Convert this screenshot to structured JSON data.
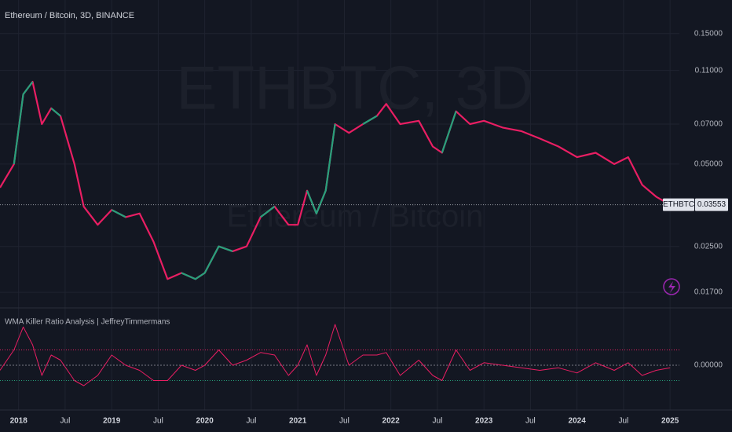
{
  "chart_data": [
    {
      "type": "line",
      "title": "Ethereum / Bitcoin, 3D, BINANCE",
      "watermark": "ETHBTC, 3D",
      "watermark_subtitle": "Ethereum / Bitcoin",
      "symbol": "ETHBTC",
      "last_price": 0.03553,
      "log_scale": true,
      "grid": true,
      "xlim": [
        2017.8,
        2025.1
      ],
      "ylim": [
        0.0151,
        0.199
      ],
      "yticks": [
        {
          "value": 0.15,
          "label": "0.15000"
        },
        {
          "value": 0.11,
          "label": "0.11000"
        },
        {
          "value": 0.07,
          "label": "0.07000"
        },
        {
          "value": 0.05,
          "label": "0.05000"
        },
        {
          "value": 0.025,
          "label": "0.02500"
        },
        {
          "value": 0.017,
          "label": "0.01700"
        }
      ],
      "xticks": [
        {
          "value": 2018,
          "label": "2018"
        },
        {
          "value": 2018.5,
          "label": "Jul"
        },
        {
          "value": 2019,
          "label": "2019"
        },
        {
          "value": 2019.5,
          "label": "Jul"
        },
        {
          "value": 2020,
          "label": "2020"
        },
        {
          "value": 2020.5,
          "label": "Jul"
        },
        {
          "value": 2021,
          "label": "2021"
        },
        {
          "value": 2021.5,
          "label": "Jul"
        },
        {
          "value": 2022,
          "label": "2022"
        },
        {
          "value": 2022.5,
          "label": "Jul"
        },
        {
          "value": 2023,
          "label": "2023"
        },
        {
          "value": 2023.5,
          "label": "Jul"
        },
        {
          "value": 2024,
          "label": "2024"
        },
        {
          "value": 2024.5,
          "label": "Jul"
        },
        {
          "value": 2025,
          "label": "2025"
        }
      ],
      "x": [
        2017.8,
        2017.95,
        2018.05,
        2018.15,
        2018.25,
        2018.35,
        2018.45,
        2018.6,
        2018.7,
        2018.85,
        2019.0,
        2019.15,
        2019.3,
        2019.45,
        2019.6,
        2019.75,
        2019.9,
        2020.0,
        2020.15,
        2020.3,
        2020.45,
        2020.6,
        2020.75,
        2020.9,
        2021.0,
        2021.1,
        2021.2,
        2021.3,
        2021.4,
        2021.55,
        2021.7,
        2021.85,
        2021.95,
        2022.1,
        2022.3,
        2022.45,
        2022.55,
        2022.7,
        2022.85,
        2023.0,
        2023.2,
        2023.4,
        2023.6,
        2023.8,
        2024.0,
        2024.2,
        2024.4,
        2024.55,
        2024.7,
        2024.85,
        2025.0
      ],
      "series": [
        {
          "name": "ETHBTC",
          "color": "#e91e63",
          "values": [
            0.041,
            0.05,
            0.09,
            0.1,
            0.07,
            0.08,
            0.075,
            0.05,
            0.035,
            0.03,
            0.034,
            0.032,
            0.033,
            0.026,
            0.019,
            0.02,
            0.019,
            0.02,
            0.025,
            0.024,
            0.025,
            0.032,
            0.035,
            0.03,
            0.03,
            0.04,
            0.033,
            0.04,
            0.07,
            0.065,
            0.07,
            0.075,
            0.083,
            0.07,
            0.072,
            0.058,
            0.055,
            0.078,
            0.07,
            0.072,
            0.068,
            0.066,
            0.062,
            0.058,
            0.053,
            0.055,
            0.05,
            0.053,
            0.042,
            0.038,
            0.0355
          ]
        },
        {
          "color": "#26a17b",
          "values": [
            null,
            0.05,
            0.09,
            0.1,
            null,
            0.08,
            0.075,
            null,
            null,
            null,
            0.034,
            0.032,
            null,
            null,
            null,
            0.02,
            0.019,
            0.02,
            0.025,
            0.024,
            null,
            0.032,
            0.035,
            null,
            null,
            0.04,
            0.033,
            0.04,
            0.07,
            null,
            0.07,
            0.075,
            null,
            null,
            null,
            null,
            0.055,
            0.078,
            null,
            null,
            null,
            null,
            null,
            null,
            null,
            0.055,
            null,
            null,
            null,
            null,
            null
          ]
        }
      ]
    },
    {
      "type": "line",
      "title": "WMA Killer Ratio Analysis | JeffreyTimmermans",
      "ylim": [
        -0.1,
        0.1
      ],
      "yticks": [
        {
          "value": 0,
          "label": "0.00000"
        }
      ],
      "levels": [
        0.03,
        -0.03
      ],
      "xlim": [
        2017.8,
        2025.1
      ],
      "x": [
        2017.8,
        2017.95,
        2018.05,
        2018.15,
        2018.25,
        2018.35,
        2018.45,
        2018.6,
        2018.7,
        2018.85,
        2019.0,
        2019.15,
        2019.3,
        2019.45,
        2019.6,
        2019.75,
        2019.9,
        2020.0,
        2020.15,
        2020.3,
        2020.45,
        2020.6,
        2020.75,
        2020.9,
        2021.0,
        2021.1,
        2021.2,
        2021.3,
        2021.4,
        2021.55,
        2021.7,
        2021.85,
        2021.95,
        2022.1,
        2022.3,
        2022.45,
        2022.55,
        2022.7,
        2022.85,
        2023.0,
        2023.2,
        2023.4,
        2023.6,
        2023.8,
        2024.0,
        2024.2,
        2024.4,
        2024.55,
        2024.7,
        2024.85,
        2025.0
      ],
      "series": [
        {
          "name": "Ratio",
          "color": "#e91e63",
          "values": [
            -0.01,
            0.03,
            0.075,
            0.04,
            -0.02,
            0.02,
            0.01,
            -0.03,
            -0.04,
            -0.02,
            0.02,
            0.0,
            -0.01,
            -0.03,
            -0.03,
            0.0,
            -0.01,
            0.0,
            0.03,
            0.0,
            0.01,
            0.025,
            0.02,
            -0.02,
            0.0,
            0.04,
            -0.02,
            0.02,
            0.08,
            0.0,
            0.02,
            0.02,
            0.025,
            -0.02,
            0.01,
            -0.02,
            -0.03,
            0.03,
            -0.01,
            0.005,
            0.0,
            -0.005,
            -0.01,
            -0.005,
            -0.015,
            0.005,
            -0.01,
            0.005,
            -0.02,
            -0.01,
            -0.005
          ]
        }
      ]
    }
  ]
}
